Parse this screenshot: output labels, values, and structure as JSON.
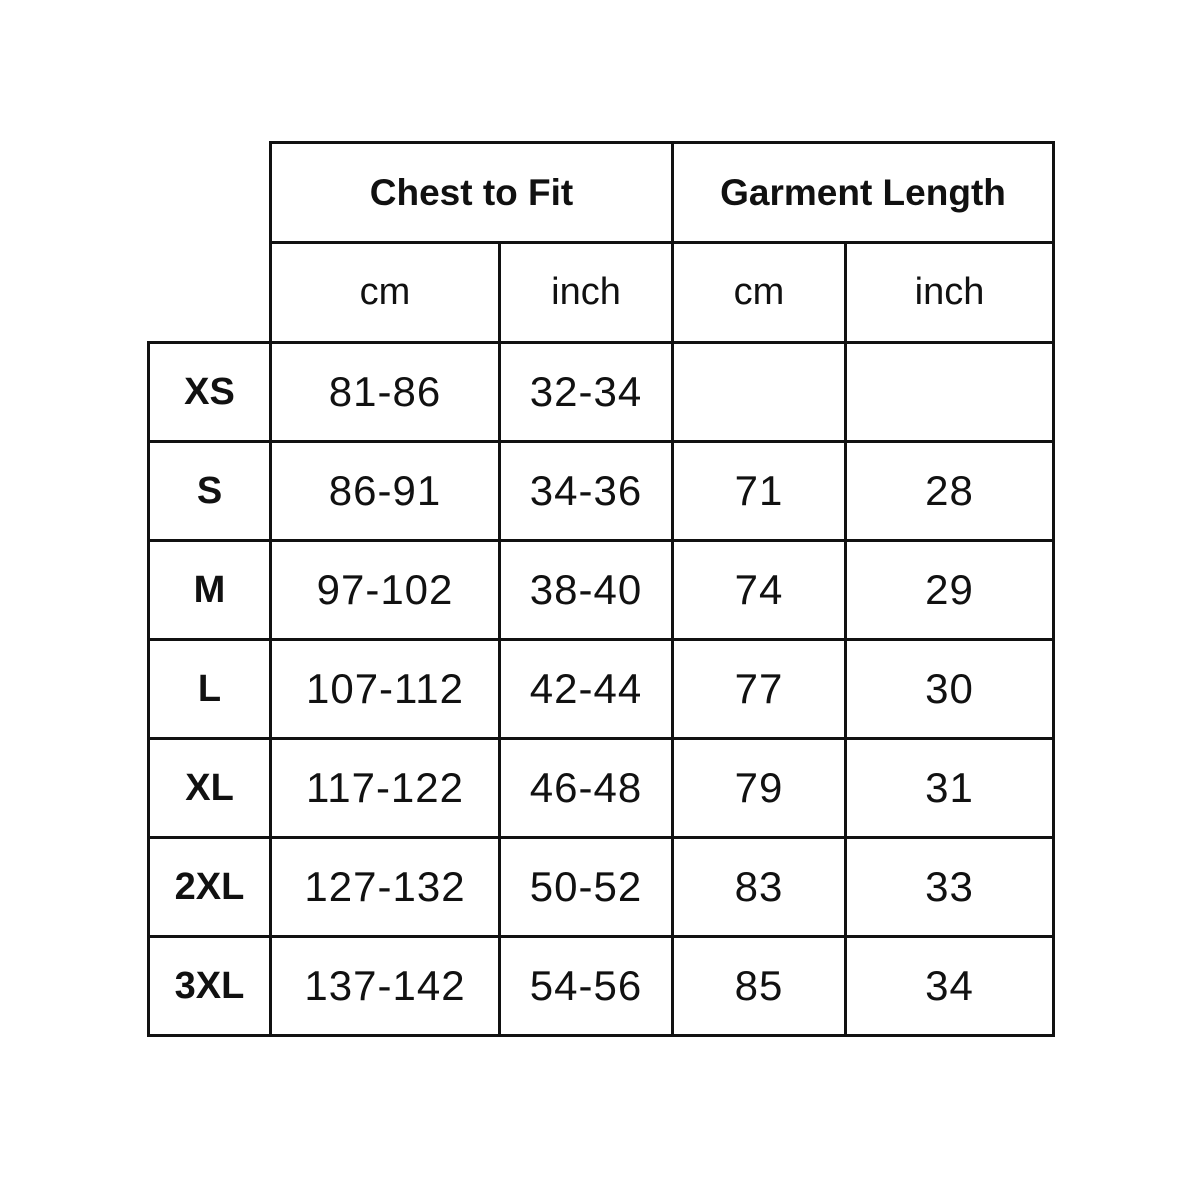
{
  "header": {
    "groups": [
      "Chest to Fit",
      "Garment Length"
    ],
    "units": [
      "cm",
      "inch",
      "cm",
      "inch"
    ]
  },
  "rows": [
    {
      "size": "XS",
      "chest_cm": "81-86",
      "chest_inch": "32-34",
      "length_cm": "",
      "length_inch": ""
    },
    {
      "size": "S",
      "chest_cm": "86-91",
      "chest_inch": "34-36",
      "length_cm": "71",
      "length_inch": "28"
    },
    {
      "size": "M",
      "chest_cm": "97-102",
      "chest_inch": "38-40",
      "length_cm": "74",
      "length_inch": "29"
    },
    {
      "size": "L",
      "chest_cm": "107-112",
      "chest_inch": "42-44",
      "length_cm": "77",
      "length_inch": "30"
    },
    {
      "size": "XL",
      "chest_cm": "117-122",
      "chest_inch": "46-48",
      "length_cm": "79",
      "length_inch": "31"
    },
    {
      "size": "2XL",
      "chest_cm": "127-132",
      "chest_inch": "50-52",
      "length_cm": "83",
      "length_inch": "33"
    },
    {
      "size": "3XL",
      "chest_cm": "137-142",
      "chest_inch": "54-56",
      "length_cm": "85",
      "length_inch": "34"
    }
  ]
}
